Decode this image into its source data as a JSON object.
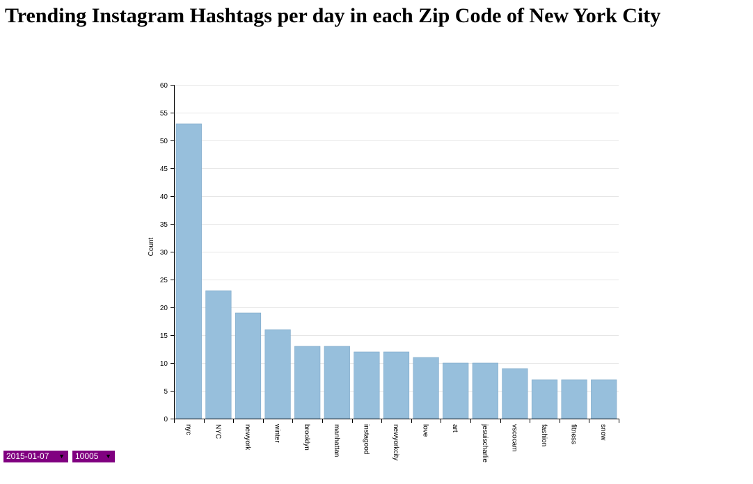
{
  "page": {
    "title": "Trending Instagram Hashtags per day in each Zip Code of New York City"
  },
  "controls": {
    "date_select": {
      "selected": "2015-01-07",
      "arrow_icon": "triangle-down-icon"
    },
    "zip_select": {
      "selected": "10005",
      "arrow_icon": "triangle-down-icon"
    }
  },
  "colors": {
    "bar_fill": "#97bfdc",
    "bar_stroke": "#7fa9c8",
    "grid": "#e6e6e6",
    "select_bg": "#800080"
  },
  "chart_data": {
    "type": "bar",
    "categories": [
      "nyc",
      "NYC",
      "newyork",
      "winter",
      "brooklyn",
      "manhattan",
      "instagood",
      "newyorkcity",
      "love",
      "art",
      "jesuischarlie",
      "vscocam",
      "fashion",
      "fitness",
      "snow"
    ],
    "values": [
      53,
      23,
      19,
      16,
      13,
      13,
      12,
      12,
      11,
      10,
      10,
      9,
      7,
      7,
      7
    ],
    "title": "",
    "xlabel": "",
    "ylabel": "Count",
    "ylim": [
      0,
      60
    ],
    "yticks": [
      0,
      5,
      10,
      15,
      20,
      25,
      30,
      35,
      40,
      45,
      50,
      55,
      60
    ],
    "grid": true,
    "legend": "none"
  }
}
